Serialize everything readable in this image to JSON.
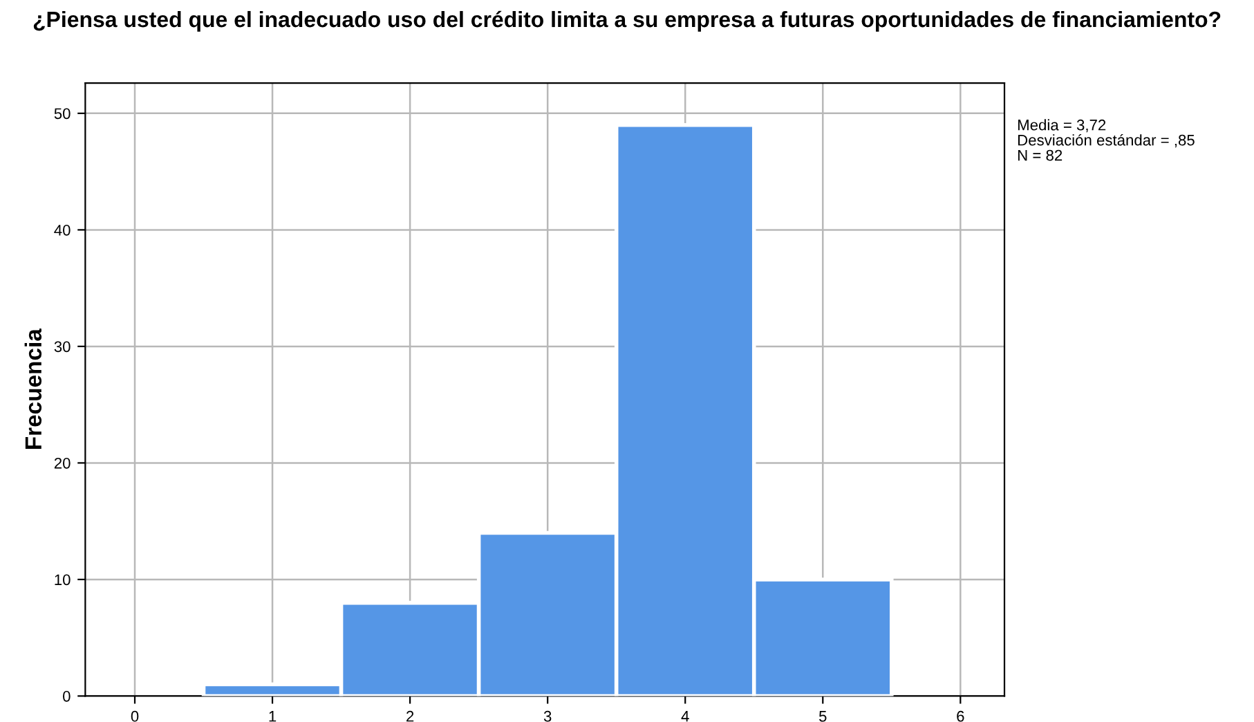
{
  "chart_data": {
    "type": "histogram",
    "title": "¿Piensa usted que el inadecuado uso del crédito limita a su empresa a futuras oportunidades de financiamiento?",
    "ylabel": "Frecuencia",
    "bins": [
      0.5,
      1.5,
      2.5,
      3.5,
      4.5,
      5.5
    ],
    "values": [
      1,
      8,
      14,
      49,
      10
    ],
    "color": "#5596e6",
    "xlim": [
      -0.36,
      6.32
    ],
    "xticks": [
      0,
      1,
      2,
      3,
      4,
      5,
      6
    ],
    "ylim": [
      0,
      52.6
    ],
    "yticks": [
      0,
      10,
      20,
      30,
      40,
      50
    ],
    "grid": true,
    "annotations": [
      "Media = 3,72",
      "Desviación estándar = ,85",
      "N = 82"
    ]
  }
}
